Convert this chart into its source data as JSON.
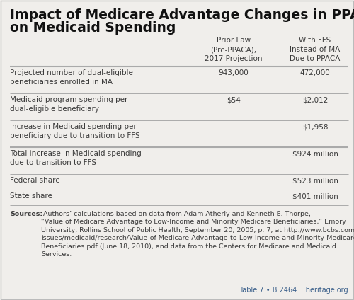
{
  "title_line1": "Impact of Medicare Advantage Changes in PPACA",
  "title_line2": "on Medicaid Spending",
  "title_fontsize": 13.5,
  "col_headers": [
    "Prior Law\n(Pre-PPACA),\n2017 Projection",
    "With FFS\nInstead of MA\nDue to PPACA"
  ],
  "rows": [
    {
      "label": "Projected number of dual-eligible\nbeneficiaries enrolled in MA",
      "col1": "943,000",
      "col2": "472,000",
      "thick_top": true
    },
    {
      "label": "Medicaid program spending per\ndual-eligible beneficiary",
      "col1": "$54",
      "col2": "$2,012",
      "thick_top": false
    },
    {
      "label": "Increase in Medicaid spending per\nbeneficiary due to transition to FFS",
      "col1": "",
      "col2": "$1,958",
      "thick_top": false
    },
    {
      "label": "Total increase in Medicaid spending\ndue to transition to FFS",
      "col1": "",
      "col2": "$924 million",
      "thick_top": true
    },
    {
      "label": "Federal share",
      "col1": "",
      "col2": "$523 million",
      "thick_top": false
    },
    {
      "label": "State share",
      "col1": "",
      "col2": "$401 million",
      "thick_top": false
    }
  ],
  "sources_bold": "Sources:",
  "sources_text": " Authors’ calculations based on data from Adam Atherly and Kenneth E. Thorpe,\n“Value of Medicare Advantage to Low-Income and Minority Medicare Beneficiaries,” Emory\nUniversity, Rollins School of Public Health, September 20, 2005, p. 7, at http://www.bcbs.com/\nissues/medicaid/research/Value-of-Medicare-Advantage-to-Low-Income-and-Minority-Medicare-\nBeneficiaries.pdf (June 18, 2010), and data from the Centers for Medicare and Medicaid\nServices.",
  "footer_text": "Table 7 • B 2464  🗳  heritage.org",
  "bg_color": "#f0eeeb",
  "line_color": "#aaaaaa",
  "text_color": "#3a3a3a",
  "title_color": "#111111",
  "footer_color": "#3a5f8a",
  "font_size": 7.5,
  "sources_fontsize": 6.8
}
